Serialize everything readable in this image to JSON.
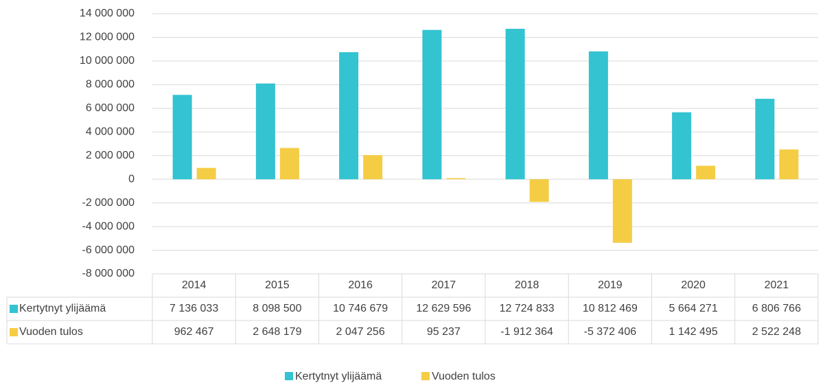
{
  "chart_data": {
    "type": "bar",
    "categories": [
      "2014",
      "2015",
      "2016",
      "2017",
      "2018",
      "2019",
      "2020",
      "2021"
    ],
    "series": [
      {
        "name": "Kertytnyt ylijäämä",
        "color": "#33c3d1",
        "values": [
          7136033,
          8098500,
          10746679,
          12629596,
          12724833,
          10812469,
          5664271,
          6806766
        ],
        "value_labels": [
          "7 136 033",
          "8 098 500",
          "10 746 679",
          "12 629 596",
          "12 724 833",
          "10 812 469",
          "5 664 271",
          "6 806 766"
        ]
      },
      {
        "name": "Vuoden tulos",
        "color": "#f5cd45",
        "values": [
          962467,
          2648179,
          2047256,
          95237,
          -1912364,
          -5372406,
          1142495,
          2522248
        ],
        "value_labels": [
          "962 467",
          "2 648 179",
          "2 047 256",
          "95 237",
          "-1 912 364",
          "-5 372 406",
          "1 142 495",
          "2 522 248"
        ]
      }
    ],
    "ylim": [
      -8000000,
      14000000
    ],
    "yticks": [
      {
        "value": -8000000,
        "label": "-8 000 000"
      },
      {
        "value": -6000000,
        "label": "-6 000 000"
      },
      {
        "value": -4000000,
        "label": "-4 000 000"
      },
      {
        "value": -2000000,
        "label": "-2 000 000"
      },
      0,
      {
        "value": 2000000,
        "label": "2 000 000"
      },
      {
        "value": 4000000,
        "label": "4 000 000"
      },
      {
        "value": 6000000,
        "label": "6 000 000"
      },
      {
        "value": 8000000,
        "label": "8 000 000"
      },
      {
        "value": 10000000,
        "label": "10 000 000"
      },
      {
        "value": 12000000,
        "label": "12 000 000"
      },
      {
        "value": 14000000,
        "label": "14 000 000"
      }
    ],
    "grid": true,
    "legend": "bottom"
  }
}
